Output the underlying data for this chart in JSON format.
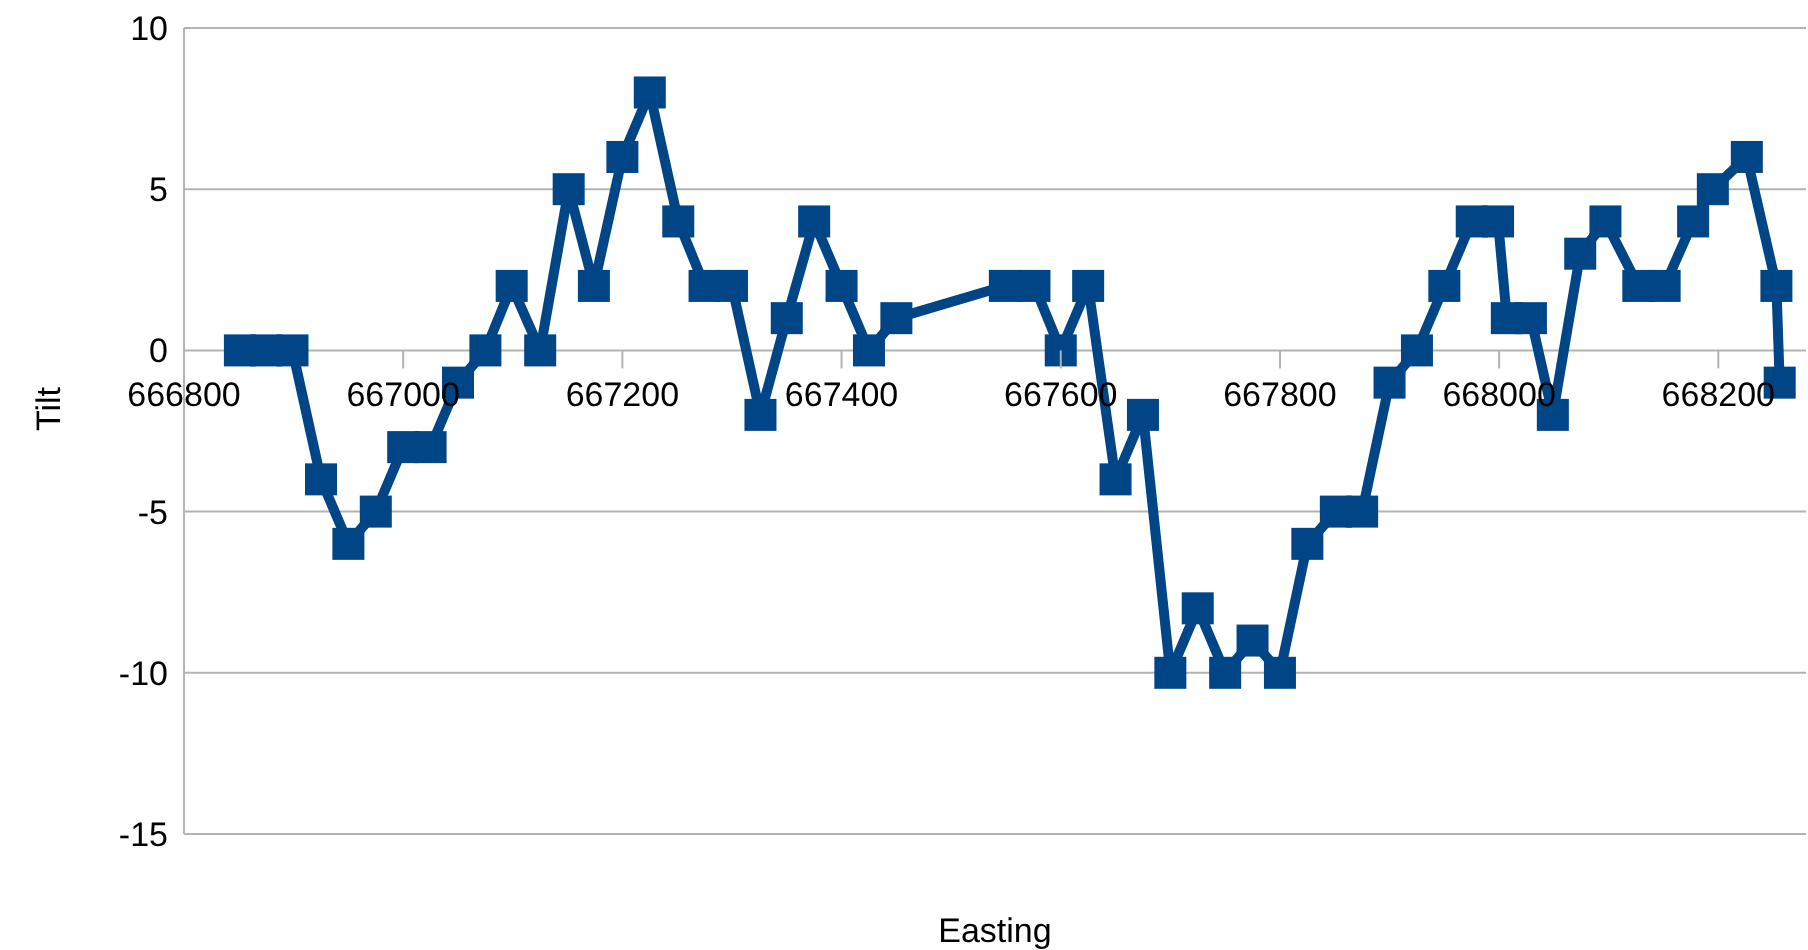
{
  "chart_data": {
    "type": "line",
    "xlabel": "Easting",
    "ylabel": "Tilt",
    "x": [
      666851,
      666875,
      666899,
      666925,
      666950,
      666975,
      667000,
      667025,
      667050,
      667075,
      667099,
      667125,
      667151,
      667174,
      667200,
      667225,
      667251,
      667275,
      667300,
      667326,
      667350,
      667375,
      667400,
      667425,
      667450,
      667549,
      667576,
      667600,
      667625,
      667650,
      667675,
      667700,
      667725,
      667750,
      667775,
      667800,
      667825,
      667851,
      667875,
      667900,
      667925,
      667950,
      667975,
      667999,
      668007,
      668029,
      668049,
      668074,
      668097,
      668127,
      668151,
      668177,
      668195,
      668226,
      668253,
      668256
    ],
    "series": [
      {
        "color": "#004586",
        "values": [
          0,
          0,
          0,
          -4,
          -6,
          -5,
          -3,
          -3,
          -1,
          0,
          2,
          0,
          5,
          2,
          6,
          8,
          4,
          2,
          2,
          -2,
          1,
          4,
          2,
          0,
          1,
          2,
          2,
          0,
          2,
          -4,
          -2,
          -10,
          -8,
          -10,
          -9,
          -10,
          -6,
          -5,
          -5,
          -1,
          0,
          2,
          4,
          4,
          1,
          1,
          -2,
          3,
          4,
          2,
          2,
          4,
          5,
          6,
          2,
          -1
        ]
      }
    ],
    "xlim": [
      666800,
      668280
    ],
    "xticks": [
      666800,
      667000,
      667200,
      667400,
      667600,
      667800,
      668000,
      668200
    ],
    "ylim": [
      -15,
      10
    ],
    "yticks": [
      -15,
      -10,
      -5,
      0,
      5,
      10
    ],
    "grid": "y",
    "legend": false,
    "marker": "square",
    "line_style": "solid"
  }
}
